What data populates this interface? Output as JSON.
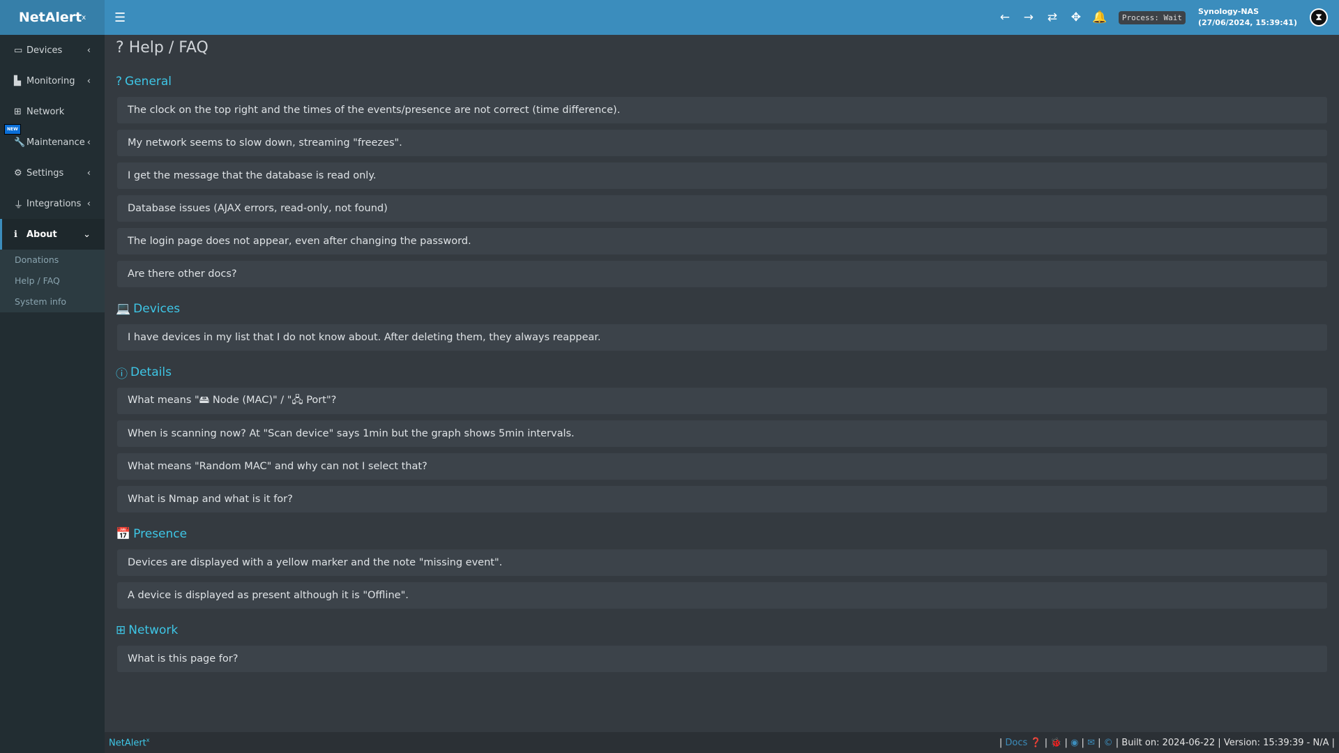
{
  "header": {
    "logo": "NetAlert",
    "logo_sup": "x",
    "process": "Process: Wait",
    "host": "Synology-NAS",
    "datetime": "(27/06/2024, 15:39:41)",
    "icons": [
      "arrow-left-icon",
      "arrow-right-icon",
      "refresh-icon",
      "move-icon",
      "bell-icon"
    ]
  },
  "sidebar": {
    "items": [
      {
        "label": "Devices"
      },
      {
        "label": "Monitoring"
      },
      {
        "label": "Network"
      },
      {
        "label": "Maintenance",
        "badge": "NEW"
      },
      {
        "label": "Settings"
      },
      {
        "label": "Integrations"
      },
      {
        "label": "About"
      }
    ],
    "about_sub": [
      "Donations",
      "Help / FAQ",
      "System info"
    ]
  },
  "page": {
    "title": "Help / FAQ"
  },
  "sections": [
    {
      "title": "General",
      "items": [
        "The clock on the top right and the times of the events/presence are not correct (time difference).",
        "My network seems to slow down, streaming \"freezes\".",
        "I get the message that the database is read only.",
        "Database issues (AJAX errors, read-only, not found)",
        "The login page does not appear, even after changing the password.",
        "Are there other docs?"
      ]
    },
    {
      "title": "Devices",
      "items": [
        "I have devices in my list that I do not know about. After deleting them, they always reappear."
      ]
    },
    {
      "title": "Details",
      "items": [
        "What means \"🖴 Node (MAC)\" / \"🖧 Port\"?",
        "When is scanning now? At \"Scan device\" says 1min but the graph shows 5min intervals.",
        "What means \"Random MAC\" and why can not I select that?",
        "What is Nmap and what is it for?"
      ]
    },
    {
      "title": "Presence",
      "items": [
        "Devices are displayed with a yellow marker and the note \"missing event\".",
        "A device is displayed as present although it is \"Offline\"."
      ]
    },
    {
      "title": "Network",
      "items": [
        "What is this page for?"
      ]
    }
  ],
  "footer": {
    "brand": "NetAlert",
    "brand_sup": "x",
    "docs": "Docs",
    "built": "Built on: 2024-06-22",
    "version": "Version: 15:39:39 - N/A"
  },
  "colors": {
    "header": "#3b8dbd",
    "sidebar": "#222d32",
    "accent": "#3ec6e6"
  }
}
